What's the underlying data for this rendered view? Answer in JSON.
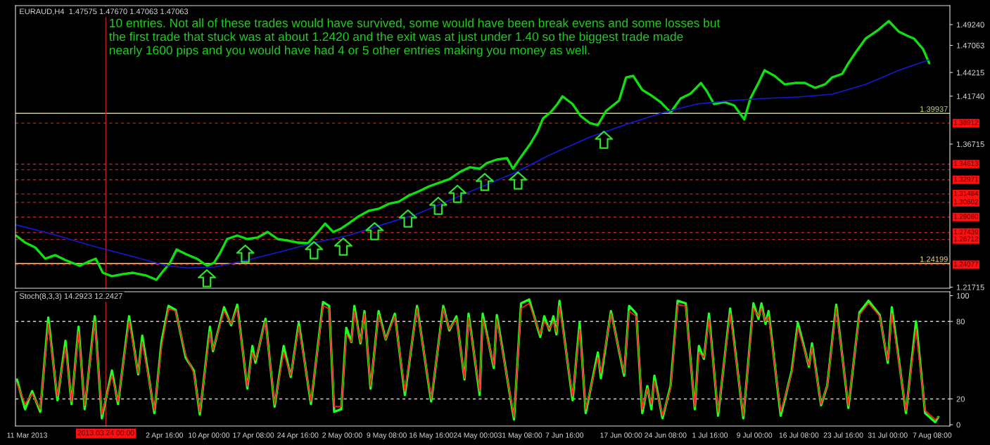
{
  "chart_data": [
    {
      "type": "line",
      "title": "EURAUD,H4  1.47575 1.47670 1.47063 1.47063",
      "annotations": [
        "10 entries. Not all of these trades would have survived, some would have been break evens and some losses but\nthe first trade that stuck was at about 1.2420 and the exit was at just under 1.40 so the biggest trade made\nnearly 1600 pips and you would have had 4 or 5 other entries making you money as well."
      ],
      "xlim": [
        "2013-03-09T02:00",
        "2013-08-10T06:00"
      ],
      "ylim": [
        1.216,
        1.5123
      ],
      "yticks": [
        {
          "value": 1.21715,
          "label": "1.21715"
        },
        {
          "value": 1.36715,
          "label": "1.36715"
        },
        {
          "value": 1.4174,
          "label": "1.41740"
        },
        {
          "value": 1.44215,
          "label": "1.44215"
        },
        {
          "value": 1.47063,
          "label": "1.47063"
        },
        {
          "value": 1.4924,
          "label": "1.49240"
        }
      ],
      "tick_labels": "y",
      "series": [
        {
          "type": "line",
          "color": "#10e010",
          "x": [
            "2013-03-09T04:00",
            "2013-03-10T16:00",
            "2013-03-12T08:00",
            "2013-03-14T00:00",
            "2013-03-15T16:00",
            "2013-03-17T08:00",
            "2013-03-19T16:00",
            "2013-03-21T04:00",
            "2013-03-22T08:00",
            "2013-03-23T12:00",
            "2013-03-25T00:00",
            "2013-03-26T20:00",
            "2013-03-28T12:00",
            "2013-03-30T16:00",
            "2013-04-01T08:00",
            "2013-04-02T12:00",
            "2013-04-03T12:00",
            "2013-04-04T16:00",
            "2013-04-06T08:00",
            "2013-04-08T00:00",
            "2013-04-09T16:00",
            "2013-04-10T20:00",
            "2013-04-11T20:00",
            "2013-04-13T00:00",
            "2013-04-14T16:00",
            "2013-04-16T08:00",
            "2013-04-18T00:00",
            "2013-04-19T16:00",
            "2013-04-21T08:00",
            "2013-04-23T00:00",
            "2013-04-24T16:00",
            "2013-04-26T08:00",
            "2013-04-28T00:00",
            "2013-04-29T04:00",
            "2013-04-30T12:00",
            "2013-05-01T20:00",
            "2013-05-03T00:00",
            "2013-05-04T16:00",
            "2013-05-06T08:00",
            "2013-05-08T00:00",
            "2013-05-09T16:00",
            "2013-05-11T08:00",
            "2013-05-13T00:00",
            "2013-05-14T16:00",
            "2013-05-16T08:00",
            "2013-05-18T00:00",
            "2013-05-19T16:00",
            "2013-05-21T08:00",
            "2013-05-23T00:00",
            "2013-05-24T16:00",
            "2013-05-25T20:00",
            "2013-05-27T12:00",
            "2013-05-29T04:00",
            "2013-05-30T04:00",
            "2013-05-31T08:00",
            "2013-06-02T00:00",
            "2013-06-03T04:00",
            "2013-06-04T04:00",
            "2013-06-05T08:00",
            "2013-06-06T12:00",
            "2013-06-07T08:00",
            "2013-06-09T00:00",
            "2013-06-10T08:00",
            "2013-06-11T20:00",
            "2013-06-13T04:00",
            "2013-06-14T12:00",
            "2013-06-16T16:00",
            "2013-06-17T20:00",
            "2013-06-19T00:00",
            "2013-06-20T12:00",
            "2013-06-21T20:00",
            "2013-06-23T12:00",
            "2013-06-25T04:00",
            "2013-06-26T20:00",
            "2013-06-28T12:00",
            "2013-06-30T04:00",
            "2013-07-01T04:00",
            "2013-07-02T08:00",
            "2013-07-04T00:00",
            "2013-07-05T16:00",
            "2013-07-07T08:00",
            "2013-07-08T08:00",
            "2013-07-09T16:00",
            "2013-07-10T16:00",
            "2013-07-12T08:00",
            "2013-07-14T00:00",
            "2013-07-15T16:00",
            "2013-07-17T08:00",
            "2013-07-19T00:00",
            "2013-07-20T16:00",
            "2013-07-21T20:00",
            "2013-07-23T12:00",
            "2013-07-24T12:00",
            "2013-07-25T16:00",
            "2013-07-27T08:00",
            "2013-07-28T12:00",
            "2013-07-29T12:00",
            "2013-07-31T04:00",
            "2013-08-01T20:00",
            "2013-08-03T00:00",
            "2013-08-04T08:00",
            "2013-08-05T20:00",
            "2013-08-06T20:00"
          ],
          "values": [
            1.2713,
            1.2639,
            1.2588,
            1.247,
            1.2507,
            1.2455,
            1.2396,
            1.244,
            1.247,
            1.2322,
            1.2286,
            1.2308,
            1.2322,
            1.2293,
            1.2249,
            1.2344,
            1.2418,
            1.2566,
            1.2514,
            1.247,
            1.2396,
            1.2426,
            1.2529,
            1.2676,
            1.2713,
            1.2676,
            1.2691,
            1.275,
            1.2676,
            1.2661,
            1.2639,
            1.2632,
            1.275,
            1.2838,
            1.275,
            1.2787,
            1.2838,
            1.2912,
            1.2971,
            1.2993,
            1.3045,
            1.3067,
            1.3133,
            1.3177,
            1.3229,
            1.3266,
            1.3303,
            1.3376,
            1.3428,
            1.3413,
            1.3472,
            1.3509,
            1.3524,
            1.3413,
            1.3524,
            1.3671,
            1.3796,
            1.3944,
            1.4003,
            1.4091,
            1.4172,
            1.4091,
            1.3966,
            1.3892,
            1.387,
            1.4017,
            1.4128,
            1.4371,
            1.4386,
            1.4239,
            1.4187,
            1.4113,
            1.4003,
            1.415,
            1.4202,
            1.4312,
            1.4224,
            1.4091,
            1.4113,
            1.4076,
            1.3929,
            1.415,
            1.4312,
            1.4445,
            1.4386,
            1.4298,
            1.4312,
            1.4312,
            1.4261,
            1.4298,
            1.4371,
            1.4408,
            1.4519,
            1.4629,
            1.4777,
            1.4828,
            1.4872,
            1.4961,
            1.485,
            1.4813,
            1.4777,
            1.4666,
            1.4519
          ]
        },
        {
          "type": "line",
          "color": "#1818d8",
          "x": [
            "2013-03-09T04:00",
            "2013-03-15T04:00",
            "2013-03-21T20:00",
            "2013-03-28T12:00",
            "2013-04-03T00:00",
            "2013-04-06T08:00",
            "2013-04-10T20:00",
            "2013-04-16T08:00",
            "2013-04-21T20:00",
            "2013-04-27T12:00",
            "2013-05-03T00:00",
            "2013-05-08T12:00",
            "2013-05-14T04:00",
            "2013-05-19T16:00",
            "2013-05-25T04:00",
            "2013-05-30T16:00",
            "2013-06-05T08:00",
            "2013-06-11T20:00",
            "2013-06-18T12:00",
            "2013-06-24T00:00",
            "2013-06-29T12:00",
            "2013-07-05T04:00",
            "2013-07-10T16:00",
            "2013-07-16T04:00",
            "2013-07-21T20:00",
            "2013-07-27T08:00",
            "2013-08-01T20:00",
            "2013-08-06T20:00"
          ],
          "values": [
            1.2824,
            1.2728,
            1.2602,
            1.2492,
            1.2396,
            1.2374,
            1.2381,
            1.2455,
            1.2543,
            1.2639,
            1.2713,
            1.2824,
            1.2934,
            1.3081,
            1.3229,
            1.3376,
            1.3561,
            1.3745,
            1.3892,
            1.4003,
            1.4091,
            1.4128,
            1.415,
            1.4165,
            1.4194,
            1.4298,
            1.4445,
            1.4555
          ]
        },
        {
          "type": "scatter",
          "color": "#30e030",
          "x": [
            "2013-04-09T16:00",
            "2013-04-16T00:00",
            "2013-04-27T08:00",
            "2013-05-02T04:00",
            "2013-05-07T08:00",
            "2013-05-12T20:00",
            "2013-05-17T20:00",
            "2013-05-21T00:00",
            "2013-05-25T12:00",
            "2013-05-31T00:00",
            "2013-06-14T04:00"
          ],
          "values": [
            1.2264,
            1.2522,
            1.2559,
            1.2596,
            1.2758,
            1.2891,
            1.3024,
            1.3149,
            1.3274,
            1.3289,
            1.3716
          ]
        }
      ],
      "ref_lines": [
        {
          "axis": "y",
          "value": 1.39937,
          "label": "1.39937",
          "color": "#c8c87a",
          "line_style": "solid"
        },
        {
          "axis": "y",
          "value": 1.24199,
          "label": "1.24199",
          "color": "#e8d08a",
          "line_style": "solid"
        },
        {
          "axis": "y",
          "value": 1.38912,
          "label": "1.38912",
          "color": "#c02020",
          "line_style": "dashed"
        },
        {
          "axis": "y",
          "value": 1.34613,
          "label": "1.34613",
          "color": "#c02020",
          "line_style": "dashed"
        },
        {
          "axis": "y",
          "value": 1.3403,
          "color": "#c02020",
          "line_style": "dashed"
        },
        {
          "axis": "y",
          "value": 1.32971,
          "label": "1.32971",
          "color": "#c02020",
          "line_style": "dashed"
        },
        {
          "axis": "y",
          "value": 1.31484,
          "label": "1.31484",
          "color": "#c02020",
          "line_style": "dashed"
        },
        {
          "axis": "y",
          "value": 1.30602,
          "label": "1.30602",
          "color": "#c02020",
          "line_style": "dashed"
        },
        {
          "axis": "y",
          "value": 1.2906,
          "label": "1.29060",
          "color": "#c02020",
          "line_style": "dashed"
        },
        {
          "axis": "y",
          "value": 1.27439,
          "label": "1.27439",
          "color": "#c02020",
          "line_style": "dashed"
        },
        {
          "axis": "y",
          "value": 1.26712,
          "label": "1.26712",
          "color": "#c02020",
          "line_style": "dashed"
        },
        {
          "axis": "y",
          "value": 1.24077,
          "label": "1.24077",
          "color": "#c02020",
          "line_style": "dashed"
        },
        {
          "axis": "x",
          "value": "2013-03-24T00:00",
          "color": "#c02020",
          "line_style": "solid"
        }
      ]
    },
    {
      "type": "line",
      "title": "Stoch(8,3,3) 14.2923 12.2427",
      "xlim": [
        "2013-03-09T02:00",
        "2013-08-10T06:00"
      ],
      "ylim": [
        -1,
        103
      ],
      "xticks": [
        {
          "value": "2013-03-11T00:00",
          "label": "11 Mar 2013"
        },
        {
          "value": "2013-04-02T16:00",
          "label": "2 Apr 16:00"
        },
        {
          "value": "2013-04-10T00:00",
          "label": "10 Apr 00:00"
        },
        {
          "value": "2013-04-17T08:00",
          "label": "17 Apr 08:00"
        },
        {
          "value": "2013-04-24T16:00",
          "label": "24 Apr 16:00"
        },
        {
          "value": "2013-05-02T00:00",
          "label": "2 May 00:00"
        },
        {
          "value": "2013-05-09T08:00",
          "label": "9 May 08:00"
        },
        {
          "value": "2013-05-16T16:00",
          "label": "16 May 16:00"
        },
        {
          "value": "2013-05-24T00:00",
          "label": "24 May 00:00"
        },
        {
          "value": "2013-05-31T08:00",
          "label": "31 May 08:00"
        },
        {
          "value": "2013-06-07T16:00",
          "label": "7 Jun 16:00"
        },
        {
          "value": "2013-06-17T00:00",
          "label": "17 Jun 00:00"
        },
        {
          "value": "2013-06-24T08:00",
          "label": "24 Jun 08:00"
        },
        {
          "value": "2013-07-01T16:00",
          "label": "1 Jul 16:00"
        },
        {
          "value": "2013-07-09T00:00",
          "label": "9 Jul 00:00"
        },
        {
          "value": "2013-07-16T08:00",
          "label": "16 Jul 08:00"
        },
        {
          "value": "2013-07-23T16:00",
          "label": "23 Jul 16:00"
        },
        {
          "value": "2013-07-31T00:00",
          "label": "31 Jul 00:00"
        },
        {
          "value": "2013-08-07T08:00",
          "label": "7 Aug 08:00"
        }
      ],
      "yticks": [
        0,
        20,
        80,
        100
      ],
      "x": [
        "2013-03-09T08:00",
        "2013-03-10T16:00",
        "2013-03-11T20:00",
        "2013-03-13T04:00",
        "2013-03-14T12:00",
        "2013-03-16T00:00",
        "2013-03-17T08:00",
        "2013-03-18T08:00",
        "2013-03-19T12:00",
        "2013-03-20T12:00",
        "2013-03-22T04:00",
        "2013-03-23T08:00",
        "2013-03-25T00:00",
        "2013-03-26T00:00",
        "2013-03-27T20:00",
        "2013-03-29T08:00",
        "2013-03-30T00:00",
        "2013-04-01T00:00",
        "2013-04-02T04:00",
        "2013-04-03T08:00",
        "2013-04-04T12:00",
        "2013-04-06T04:00",
        "2013-04-07T12:00",
        "2013-04-08T12:00",
        "2013-04-10T04:00",
        "2013-04-10T16:00",
        "2013-04-12T12:00",
        "2013-04-13T16:00",
        "2013-04-14T16:00",
        "2013-04-16T08:00",
        "2013-04-17T04:00",
        "2013-04-17T16:00",
        "2013-04-19T08:00",
        "2013-04-20T20:00",
        "2013-04-22T08:00",
        "2013-04-23T12:00",
        "2013-04-24T20:00",
        "2013-04-26T20:00",
        "2013-04-28T20:00",
        "2013-04-29T20:00",
        "2013-04-30T16:00",
        "2013-05-01T20:00",
        "2013-05-02T16:00",
        "2013-05-03T12:00",
        "2013-05-04T00:00",
        "2013-05-05T00:00",
        "2013-05-05T16:00",
        "2013-05-06T16:00",
        "2013-05-08T00:00",
        "2013-05-09T04:00",
        "2013-05-10T16:00",
        "2013-05-12T08:00",
        "2013-05-14T08:00",
        "2013-05-16T16:00",
        "2013-05-18T16:00",
        "2013-05-19T16:00",
        "2013-05-20T20:00",
        "2013-05-22T04:00",
        "2013-05-22T20:00",
        "2013-05-24T16:00",
        "2013-05-25T04:00",
        "2013-05-27T00:00",
        "2013-05-27T12:00",
        "2013-05-30T08:00",
        "2013-05-31T12:00",
        "2013-06-01T20:00",
        "2013-06-03T16:00",
        "2013-06-04T08:00",
        "2013-06-05T04:00",
        "2013-06-05T20:00",
        "2013-06-06T08:00",
        "2013-06-06T20:00",
        "2013-06-09T00:00",
        "2013-06-10T04:00",
        "2013-06-11T04:00",
        "2013-06-13T04:00",
        "2013-06-13T16:00",
        "2013-06-15T08:00",
        "2013-06-17T12:00",
        "2013-06-18T08:00",
        "2013-06-19T12:00",
        "2013-06-20T12:00",
        "2013-06-21T08:00",
        "2013-06-22T00:00",
        "2013-06-22T12:00",
        "2013-06-23T20:00",
        "2013-06-25T04:00",
        "2013-06-26T08:00",
        "2013-06-27T16:00",
        "2013-06-29T04:00",
        "2013-06-29T20:00",
        "2013-06-30T16:00",
        "2013-07-01T12:00",
        "2013-07-03T00:00",
        "2013-07-05T00:00",
        "2013-07-07T04:00",
        "2013-07-08T20:00",
        "2013-07-09T16:00",
        "2013-07-10T04:00",
        "2013-07-10T20:00",
        "2013-07-11T08:00",
        "2013-07-13T08:00",
        "2013-07-15T04:00",
        "2013-07-16T04:00",
        "2013-07-18T00:00",
        "2013-07-18T12:00",
        "2013-07-20T00:00",
        "2013-07-21T00:00",
        "2013-07-22T12:00",
        "2013-07-24T12:00",
        "2013-07-26T08:00",
        "2013-07-27T20:00",
        "2013-07-29T16:00",
        "2013-07-31T00:00",
        "2013-07-31T16:00",
        "2013-08-03T00:00",
        "2013-08-04T16:00",
        "2013-08-06T04:00",
        "2013-08-07T20:00",
        "2013-08-08T08:00"
      ],
      "series": [
        {
          "type": "line",
          "color": "#20ff20",
          "values": [
            35,
            12,
            26,
            10,
            83,
            19,
            65,
            16,
            76,
            12,
            84,
            5,
            42,
            16,
            84,
            39,
            69,
            9,
            64,
            92,
            89,
            52,
            42,
            8,
            76,
            57,
            91,
            77,
            93,
            28,
            61,
            48,
            82,
            14,
            61,
            37,
            79,
            16,
            95,
            92,
            10,
            12,
            75,
            64,
            92,
            63,
            88,
            28,
            88,
            66,
            86,
            23,
            92,
            18,
            92,
            73,
            84,
            35,
            86,
            23,
            86,
            44,
            85,
            4,
            94,
            97,
            68,
            84,
            73,
            84,
            70,
            96,
            19,
            79,
            9,
            56,
            36,
            88,
            38,
            92,
            86,
            9,
            30,
            12,
            38,
            5,
            30,
            96,
            94,
            12,
            61,
            51,
            86,
            7,
            90,
            5,
            94,
            82,
            94,
            78,
            88,
            7,
            42,
            79,
            45,
            63,
            15,
            30,
            93,
            13,
            87,
            96,
            85,
            48,
            91,
            9,
            80,
            9,
            2,
            6
          ]
        },
        {
          "type": "line",
          "color": "#ff2020",
          "values": [
            32,
            16,
            24,
            12,
            78,
            22,
            60,
            18,
            72,
            15,
            80,
            8,
            38,
            18,
            80,
            40,
            64,
            11,
            60,
            90,
            88,
            54,
            40,
            10,
            72,
            58,
            88,
            78,
            90,
            30,
            56,
            50,
            80,
            16,
            56,
            38,
            76,
            18,
            92,
            90,
            14,
            14,
            70,
            64,
            88,
            64,
            86,
            30,
            85,
            66,
            84,
            26,
            90,
            20,
            90,
            74,
            82,
            36,
            83,
            26,
            82,
            46,
            82,
            6,
            90,
            94,
            70,
            80,
            74,
            80,
            72,
            92,
            22,
            74,
            12,
            52,
            40,
            86,
            40,
            88,
            84,
            12,
            28,
            16,
            34,
            7,
            28,
            93,
            92,
            14,
            56,
            52,
            82,
            10,
            86,
            7,
            90,
            84,
            90,
            80,
            84,
            10,
            40,
            75,
            46,
            60,
            16,
            30,
            90,
            15,
            85,
            94,
            84,
            50,
            86,
            11,
            74,
            11,
            4,
            6
          ]
        }
      ],
      "ref_lines": [
        {
          "axis": "y",
          "value": 80,
          "color": "#d0d0d0",
          "line_style": "dashed"
        },
        {
          "axis": "y",
          "value": 20,
          "color": "#d0d0d0",
          "line_style": "dashed"
        },
        {
          "axis": "x",
          "value": "2013-03-24T00:00",
          "label": "2013.03.24 00:00",
          "color": "#c02020",
          "line_style": "solid"
        }
      ]
    }
  ]
}
